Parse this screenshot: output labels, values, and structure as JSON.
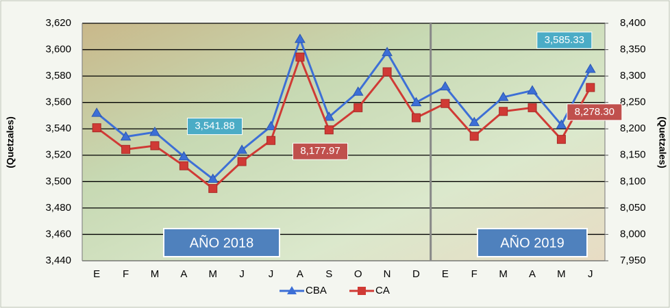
{
  "chart_data": {
    "type": "line",
    "y_label": "(Quetzales)",
    "y2_label": "(Quetzales)",
    "categories": [
      "E",
      "F",
      "M",
      "A",
      "M",
      "J",
      "J",
      "A",
      "S",
      "O",
      "N",
      "D",
      "E",
      "F",
      "M",
      "A",
      "M",
      "J"
    ],
    "series": [
      {
        "name": "CBA",
        "color": "#3d6fd6",
        "marker": "triangle",
        "values": [
          3552,
          3534,
          3537.5,
          3519,
          3502,
          3524,
          3541.88,
          3608,
          3549,
          3568,
          3598,
          3560,
          3572,
          3545,
          3564,
          3569,
          3543,
          3585.33
        ],
        "value_labels": [
          null,
          null,
          null,
          null,
          null,
          null,
          "3,541.88",
          null,
          null,
          null,
          null,
          null,
          null,
          null,
          null,
          null,
          null,
          "3,585.33"
        ],
        "label_color": "#4bacc6"
      },
      {
        "name": "CA",
        "color": "#d03a35",
        "marker": "square",
        "axis": "y2",
        "values": [
          8202,
          8161,
          8168,
          8130,
          8087,
          8138,
          8177.97,
          8336,
          8198,
          8240,
          8308,
          8221,
          8248,
          8186,
          8233,
          8240,
          8180,
          8278.3
        ],
        "value_labels": [
          null,
          null,
          null,
          null,
          null,
          null,
          "8,177.97",
          null,
          null,
          null,
          null,
          null,
          null,
          null,
          null,
          null,
          null,
          "8,278.30"
        ],
        "label_color": "#c0504d"
      }
    ],
    "annotations": [
      "AÑO 2018",
      "AÑO 2019"
    ],
    "ylim": [
      3440,
      3620
    ],
    "yticks": [
      {
        "value": 3440,
        "label": "3,440"
      },
      {
        "value": 3460,
        "label": "3,460"
      },
      {
        "value": 3480,
        "label": "3,480"
      },
      {
        "value": 3500,
        "label": "3,500"
      },
      {
        "value": 3520,
        "label": "3,520"
      },
      {
        "value": 3540,
        "label": "3,540"
      },
      {
        "value": 3560,
        "label": "3,560"
      },
      {
        "value": 3580,
        "label": "3,580"
      },
      {
        "value": 3600,
        "label": "3,600"
      },
      {
        "value": 3620,
        "label": "3,620"
      }
    ],
    "y2lim": [
      7950,
      8400
    ],
    "y2ticks": [
      {
        "value": 7950,
        "label": "7,950"
      },
      {
        "value": 8000,
        "label": "8,000"
      },
      {
        "value": 8050,
        "label": "8,050"
      },
      {
        "value": 8100,
        "label": "8,100"
      },
      {
        "value": 8150,
        "label": "8,150"
      },
      {
        "value": 8200,
        "label": "8,200"
      },
      {
        "value": 8250,
        "label": "8,250"
      },
      {
        "value": 8300,
        "label": "8,300"
      },
      {
        "value": 8350,
        "label": "8,350"
      },
      {
        "value": 8400,
        "label": "8,400"
      }
    ],
    "grid": true,
    "legend": "bottom"
  }
}
